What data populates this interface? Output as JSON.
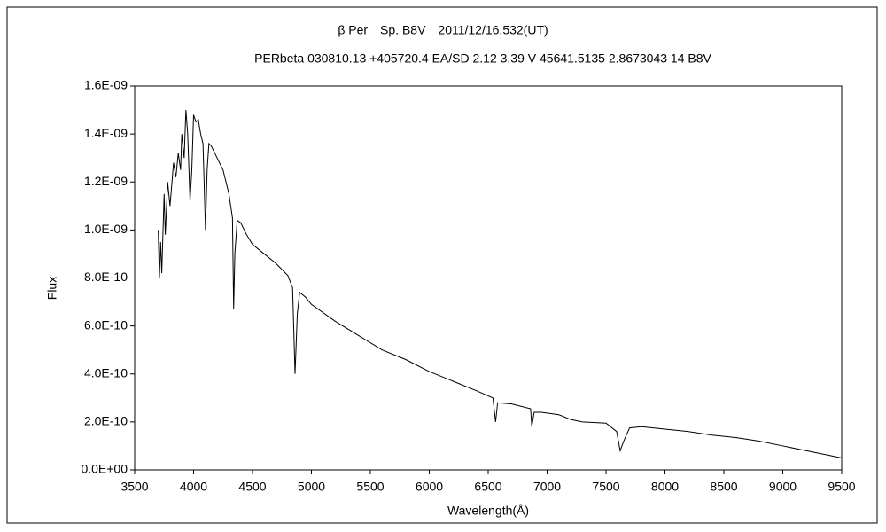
{
  "chart_data": {
    "type": "line",
    "title": "β Per　Sp. B8V　2011/12/16.532(UT)",
    "subtitle": "PERbeta 030810.13 +405720.4 EA/SD 2.12 3.39 V 45641.5135 2.8673043 14 B8V",
    "x_label": "Wavelength(Å)",
    "y_label": "Flux",
    "xlim": [
      3500,
      9500
    ],
    "xticks": [
      3500,
      4000,
      4500,
      5000,
      5500,
      6000,
      6500,
      7000,
      7500,
      8000,
      8500,
      9000,
      9500
    ],
    "ylim": [
      0,
      1.6e-09
    ],
    "yticks": [
      {
        "value": 0,
        "label": "0.0E+00"
      },
      {
        "value": 2e-10,
        "label": "2.0E-10"
      },
      {
        "value": 4e-10,
        "label": "4.0E-10"
      },
      {
        "value": 6e-10,
        "label": "6.0E-10"
      },
      {
        "value": 8e-10,
        "label": "8.0E-10"
      },
      {
        "value": 1e-09,
        "label": "1.0E-09"
      },
      {
        "value": 1.2e-09,
        "label": "1.2E-09"
      },
      {
        "value": 1.4e-09,
        "label": "1.4E-09"
      },
      {
        "value": 1.6e-09,
        "label": "1.6E-09"
      }
    ],
    "x": [
      3700,
      3710,
      3720,
      3730,
      3750,
      3760,
      3780,
      3800,
      3830,
      3850,
      3870,
      3890,
      3900,
      3920,
      3935,
      3950,
      3970,
      3985,
      4000,
      4020,
      4040,
      4060,
      4080,
      4101,
      4115,
      4130,
      4150,
      4200,
      4250,
      4300,
      4330,
      4340,
      4350,
      4370,
      4400,
      4450,
      4500,
      4600,
      4700,
      4800,
      4840,
      4861,
      4880,
      4900,
      4950,
      5000,
      5200,
      5400,
      5600,
      5800,
      6000,
      6200,
      6400,
      6540,
      6563,
      6580,
      6700,
      6860,
      6870,
      6890,
      6950,
      7100,
      7200,
      7300,
      7500,
      7590,
      7620,
      7650,
      7700,
      7800,
      8000,
      8200,
      8400,
      8600,
      8800,
      9000,
      9200,
      9400,
      9500
    ],
    "series": [
      {
        "name": "Flux",
        "color": "#000000",
        "values": [
          1e-09,
          8e-10,
          9.5e-10,
          8.2e-10,
          1.15e-09,
          9.8e-10,
          1.2e-09,
          1.1e-09,
          1.28e-09,
          1.22e-09,
          1.32e-09,
          1.25e-09,
          1.4e-09,
          1.3e-09,
          1.5e-09,
          1.4e-09,
          1.12e-09,
          1.25e-09,
          1.48e-09,
          1.45e-09,
          1.46e-09,
          1.4e-09,
          1.36e-09,
          1e-09,
          1.25e-09,
          1.36e-09,
          1.35e-09,
          1.3e-09,
          1.25e-09,
          1.15e-09,
          1.05e-09,
          6.7e-10,
          9e-10,
          1.04e-09,
          1.03e-09,
          9.8e-10,
          9.4e-10,
          9e-10,
          8.6e-10,
          8.1e-10,
          7.6e-10,
          4e-10,
          6.5e-10,
          7.4e-10,
          7.2e-10,
          6.9e-10,
          6.2e-10,
          5.6e-10,
          5e-10,
          4.6e-10,
          4.1e-10,
          3.7e-10,
          3.3e-10,
          3e-10,
          2e-10,
          2.8e-10,
          2.75e-10,
          2.55e-10,
          1.8e-10,
          2.4e-10,
          2.4e-10,
          2.3e-10,
          2.1e-10,
          2e-10,
          1.95e-10,
          1.6e-10,
          8e-11,
          1.2e-10,
          1.75e-10,
          1.8e-10,
          1.7e-10,
          1.6e-10,
          1.45e-10,
          1.35e-10,
          1.2e-10,
          1e-10,
          8e-11,
          6e-11,
          5e-11
        ]
      }
    ]
  }
}
